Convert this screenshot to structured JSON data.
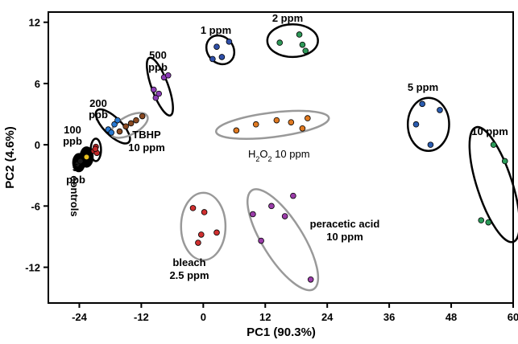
{
  "chart_data": {
    "type": "scatter",
    "xlabel": "PC1 (90.3%)",
    "ylabel": "PC2 (4.6%)",
    "xlim": [
      -30,
      60
    ],
    "ylim": [
      -15.5,
      13
    ],
    "xticks": [
      -24,
      -12,
      0,
      12,
      24,
      36,
      48,
      60
    ],
    "yticks": [
      12,
      6,
      0,
      -6,
      -12
    ],
    "grid": false,
    "series": [
      {
        "color": "#1a1a1a",
        "points": [
          [
            -24.3,
            -1.9
          ],
          [
            -23.8,
            -1.6
          ]
        ]
      },
      {
        "color": "#e8c020",
        "points": [
          [
            -22.6,
            -1.2
          ]
        ]
      },
      {
        "color": "#c02828",
        "points": [
          [
            -21.2,
            -0.6
          ],
          [
            -20.8,
            -0.2
          ],
          [
            -20.6,
            -0.8
          ],
          [
            -20.9,
            -0.4
          ]
        ]
      },
      {
        "color": "#2878d0",
        "points": [
          [
            -18.4,
            1.5
          ],
          [
            -17.8,
            1.2
          ],
          [
            -17.2,
            2.0
          ],
          [
            -16.6,
            2.4
          ]
        ]
      },
      {
        "color": "#8a4a22",
        "points": [
          [
            -16.2,
            1.3
          ],
          [
            -15.0,
            1.8
          ],
          [
            -14.0,
            2.1
          ],
          [
            -13.0,
            2.4
          ],
          [
            -11.8,
            2.8
          ]
        ]
      },
      {
        "color": "#8a3cb4",
        "points": [
          [
            -9.6,
            5.4
          ],
          [
            -9.2,
            4.6
          ],
          [
            -8.6,
            5.0
          ],
          [
            -7.6,
            6.6
          ],
          [
            -6.8,
            6.8
          ]
        ]
      },
      {
        "color": "#2f4fa8",
        "points": [
          [
            1.8,
            8.4
          ],
          [
            2.6,
            9.6
          ],
          [
            3.6,
            8.6
          ],
          [
            5.0,
            10.1
          ]
        ]
      },
      {
        "color": "#2e9858",
        "points": [
          [
            14.8,
            10.0
          ],
          [
            18.6,
            10.8
          ],
          [
            19.2,
            9.8
          ],
          [
            19.8,
            9.2
          ]
        ]
      },
      {
        "color": "#e07a22",
        "points": [
          [
            6.4,
            1.4
          ],
          [
            10.2,
            2.0
          ],
          [
            14.2,
            2.4
          ],
          [
            17.0,
            2.2
          ],
          [
            19.2,
            1.6
          ],
          [
            20.2,
            2.6
          ]
        ]
      },
      {
        "color": "#d03030",
        "points": [
          [
            -2.0,
            -6.2
          ],
          [
            -1.0,
            -9.6
          ],
          [
            -0.4,
            -8.8
          ],
          [
            0.2,
            -6.6
          ],
          [
            2.6,
            -8.6
          ]
        ]
      },
      {
        "color": "#9a3ca8",
        "points": [
          [
            9.6,
            -6.8
          ],
          [
            11.2,
            -9.4
          ],
          [
            13.2,
            -6.0
          ],
          [
            15.8,
            -7.0
          ],
          [
            17.4,
            -5.0
          ],
          [
            20.8,
            -13.2
          ]
        ]
      },
      {
        "color": "#2a5cb0",
        "points": [
          [
            41.2,
            2.0
          ],
          [
            42.4,
            4.0
          ],
          [
            44.0,
            0.0
          ],
          [
            45.8,
            3.4
          ]
        ]
      },
      {
        "color": "#2a9a58",
        "points": [
          [
            53.8,
            -7.4
          ],
          [
            55.2,
            -7.6
          ],
          [
            56.2,
            0.0
          ],
          [
            58.4,
            -1.6
          ]
        ]
      }
    ],
    "groups": [
      {
        "label": "controls",
        "center": [
          -24.1,
          -1.75
        ],
        "rx": 1.2,
        "ry": 0.9,
        "angle": 0,
        "color": "#000000",
        "filled": true
      },
      {
        "label": "50 ppb",
        "center": [
          -22.6,
          -1.2
        ],
        "rx": 1.3,
        "ry": 1.0,
        "angle": 0,
        "color": "#000000",
        "filled": true
      },
      {
        "label": "100 ppb",
        "center": [
          -20.8,
          -0.5
        ],
        "rx": 1.0,
        "ry": 1.1,
        "angle": 0,
        "color": "#000000",
        "filled": false
      },
      {
        "label": "200 ppb",
        "center": [
          -17.5,
          1.8
        ],
        "rx": 1.7,
        "ry": 2.2,
        "angle": 45,
        "color": "#000000",
        "filled": false
      },
      {
        "label": "TBHP 10 ppm",
        "center": [
          -14.3,
          1.9
        ],
        "rx": 3.9,
        "ry": 0.9,
        "angle": 28,
        "color": "#999999",
        "filled": false
      },
      {
        "label": "500 ppb",
        "center": [
          -8.4,
          5.7
        ],
        "rx": 1.6,
        "ry": 3.0,
        "angle": 20,
        "color": "#000000",
        "filled": false
      },
      {
        "label": "1 ppm",
        "center": [
          3.3,
          9.3
        ],
        "rx": 2.5,
        "ry": 1.5,
        "angle": 40,
        "color": "#000000",
        "filled": false
      },
      {
        "label": "2 ppm",
        "center": [
          17.3,
          10.2
        ],
        "rx": 4.9,
        "ry": 1.6,
        "angle": 0,
        "color": "#000000",
        "filled": false
      },
      {
        "label": "H2O2 10 ppm",
        "center": [
          13.4,
          1.95
        ],
        "rx": 11.0,
        "ry": 1.2,
        "angle": 7,
        "color": "#999999",
        "filled": false
      },
      {
        "label": "bleach 2.5 ppm",
        "center": [
          0.0,
          -8.0
        ],
        "rx": 4.3,
        "ry": 3.3,
        "angle": 0,
        "color": "#999999",
        "filled": false
      },
      {
        "label": "peracetic acid 10 ppm",
        "center": [
          15.4,
          -9.3
        ],
        "rx": 3.9,
        "ry": 5.7,
        "angle": 32,
        "color": "#999999",
        "filled": false
      },
      {
        "label": "5 ppm",
        "center": [
          43.6,
          2.0
        ],
        "rx": 4.0,
        "ry": 2.6,
        "angle": 0,
        "color": "#000000",
        "filled": false
      },
      {
        "label": "10 ppm",
        "center": [
          56.4,
          -3.9
        ],
        "rx": 3.4,
        "ry": 5.9,
        "angle": 18,
        "color": "#000000",
        "filled": false
      }
    ],
    "annotations": {
      "ppm1": "1 ppm",
      "ppm2": "2 ppm",
      "ppb500_a": "500",
      "ppb500_b": "ppb",
      "ppb200_a": "200",
      "ppb200_b": "ppb",
      "ppb100_a": "100",
      "ppb100_b": "ppb",
      "ppb50_a": "50",
      "ppb50_b": "ppb",
      "controls": "controls",
      "tbhp_a": "TBHP",
      "tbhp_b": "10 ppm",
      "h2o2_h": "H",
      "h2o2_2a": "2",
      "h2o2_o": "O",
      "h2o2_2b": "2",
      "h2o2_rest": " 10 ppm",
      "ppm5": "5 ppm",
      "ppm10": "10 ppm",
      "bleach_a": "bleach",
      "bleach_b": "2.5 ppm",
      "peracetic_a": "peracetic acid",
      "peracetic_b": "10 ppm"
    }
  }
}
